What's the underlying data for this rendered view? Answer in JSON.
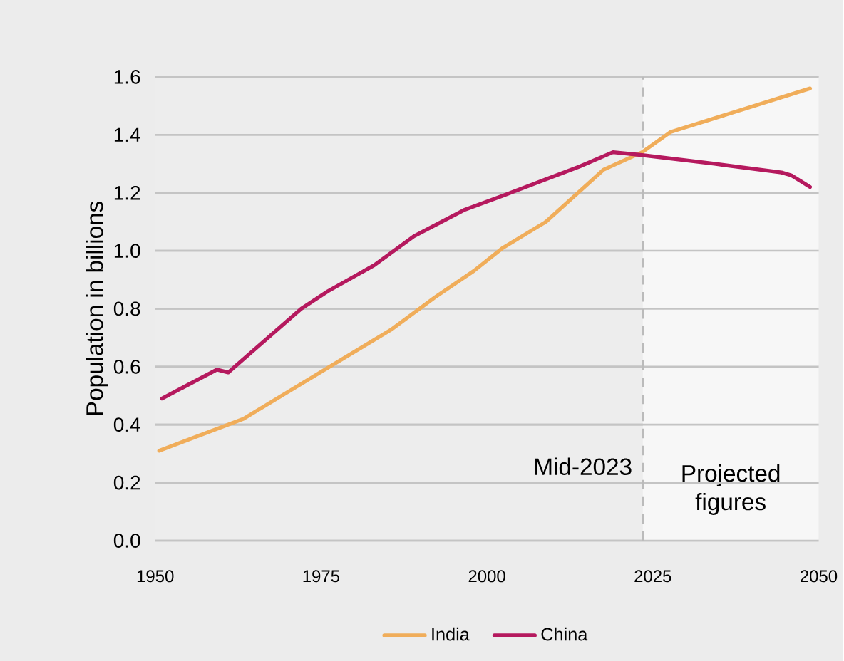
{
  "chart_data": {
    "type": "line",
    "ylabel": "Population in billions",
    "xlim": [
      1950,
      2050
    ],
    "xticks": [
      1950,
      1975,
      2000,
      2025,
      2050
    ],
    "ylim": [
      0,
      1.6
    ],
    "yticks": [
      {
        "value": 0,
        "label": "0.0"
      },
      0.2,
      0.4,
      0.6,
      0.8,
      {
        "value": 1,
        "label": "1.0"
      },
      1.2,
      1.4,
      1.6
    ],
    "grid": "y",
    "legend": "bottom",
    "series": [
      {
        "name": "India",
        "color": "#f0ad5a",
        "x": [
          1950.6,
          1963.3,
          1976.3,
          1985.7,
          1992.2,
          1998,
          2002.4,
          2008.9,
          2017.6,
          2023.4,
          2027.7,
          2048.7
        ],
        "values": [
          0.31,
          0.42,
          0.6,
          0.73,
          0.84,
          0.93,
          1.01,
          1.1,
          1.28,
          1.34,
          1.41,
          1.56
        ]
      },
      {
        "name": "China",
        "color": "#b5195e",
        "x": [
          1951,
          1959.3,
          1961,
          1972,
          1976,
          1983,
          1989,
          1996.5,
          2002.4,
          2013.9,
          2019,
          2023.4,
          2034.3,
          2044.4,
          2045.9,
          2048.7
        ],
        "values": [
          0.49,
          0.59,
          0.58,
          0.8,
          0.86,
          0.95,
          1.05,
          1.14,
          1.19,
          1.29,
          1.34,
          1.33,
          1.3,
          1.27,
          1.26,
          1.22
        ]
      }
    ],
    "ref_lines": [
      {
        "axis": "x",
        "value": 2023.5,
        "label": "Mid-2023",
        "color": "#bbbbbb",
        "line_style": "dashed"
      }
    ],
    "bands": [
      {
        "axis": "x",
        "from": 2023.5,
        "to": 2050,
        "label": "Projected figures",
        "color": "#f7f7f7"
      }
    ]
  }
}
